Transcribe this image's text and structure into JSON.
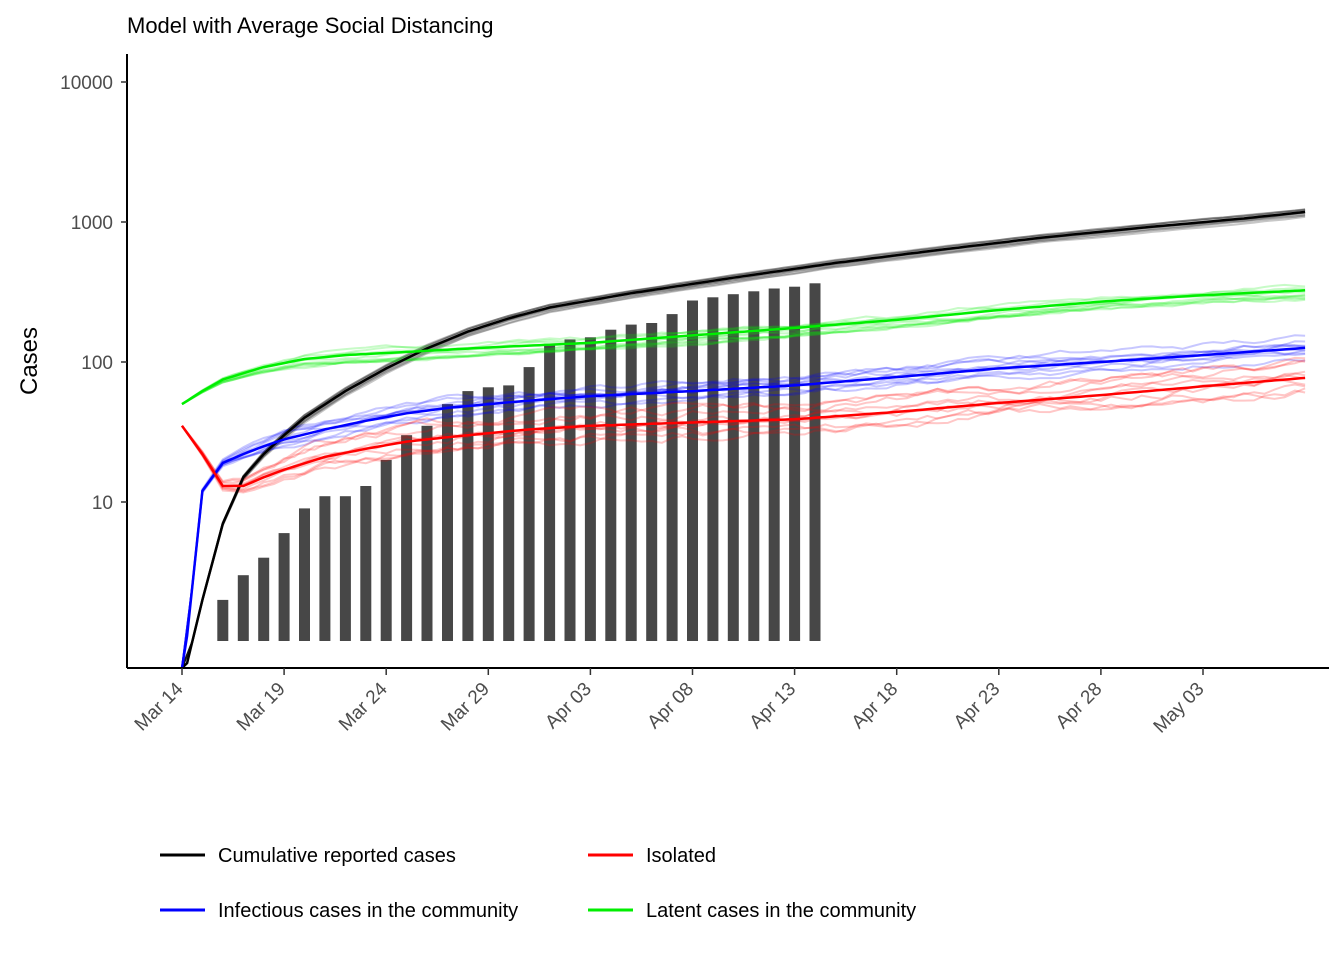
{
  "chart_data": {
    "type": "line",
    "title": "Model with Average Social Distancing",
    "xlabel": "",
    "ylabel": "Cases",
    "y_scale": "log10",
    "ylim": [
      0.6,
      16000
    ],
    "x_start": "2020-03-14",
    "x_end": "2020-05-08",
    "x_ticks": [
      "Mar 14",
      "Mar 19",
      "Mar 24",
      "Mar 29",
      "Apr 03",
      "Apr 08",
      "Apr 13",
      "Apr 18",
      "Apr 23",
      "Apr 28",
      "May 03"
    ],
    "x_tick_dates": [
      "2020-03-14",
      "2020-03-19",
      "2020-03-24",
      "2020-03-29",
      "2020-04-03",
      "2020-04-08",
      "2020-04-13",
      "2020-04-18",
      "2020-04-23",
      "2020-04-28",
      "2020-05-03"
    ],
    "y_ticks": [
      10,
      100,
      1000,
      10000
    ],
    "y_tick_labels": [
      "10",
      "100",
      "1000",
      "10000"
    ],
    "grid": false,
    "legend_position": "bottom",
    "bars": {
      "name": "Reported cases",
      "color": "#474747",
      "dates": [
        "2020-03-16",
        "2020-03-17",
        "2020-03-18",
        "2020-03-19",
        "2020-03-20",
        "2020-03-21",
        "2020-03-22",
        "2020-03-23",
        "2020-03-24",
        "2020-03-25",
        "2020-03-26",
        "2020-03-27",
        "2020-03-28",
        "2020-03-29",
        "2020-03-30",
        "2020-03-31",
        "2020-04-01",
        "2020-04-02",
        "2020-04-03",
        "2020-04-04",
        "2020-04-05",
        "2020-04-06",
        "2020-04-07",
        "2020-04-08",
        "2020-04-09",
        "2020-04-10",
        "2020-04-11",
        "2020-04-12",
        "2020-04-13",
        "2020-04-14"
      ],
      "values": [
        2,
        3,
        4,
        6,
        9,
        11,
        11,
        13,
        20,
        30,
        35,
        50,
        62,
        66,
        68,
        92,
        135,
        145,
        150,
        170,
        185,
        190,
        220,
        275,
        290,
        305,
        320,
        335,
        345,
        365
      ]
    },
    "series": [
      {
        "name": "Cumulative reported cases",
        "color": "#000000",
        "dates": [
          "2020-03-14",
          "2020-03-15",
          "2020-03-16",
          "2020-03-17",
          "2020-03-18",
          "2020-03-19",
          "2020-03-20",
          "2020-03-22",
          "2020-03-24",
          "2020-03-26",
          "2020-03-28",
          "2020-03-30",
          "2020-04-01",
          "2020-04-05",
          "2020-04-10",
          "2020-04-15",
          "2020-04-20",
          "2020-04-25",
          "2020-04-30",
          "2020-05-05",
          "2020-05-08"
        ],
        "values": [
          0.5,
          2,
          7,
          15,
          22,
          30,
          40,
          62,
          90,
          125,
          165,
          205,
          245,
          310,
          400,
          510,
          630,
          770,
          910,
          1060,
          1180
        ]
      },
      {
        "name": "Infectious cases in the community",
        "color": "#0000ff",
        "dates": [
          "2020-03-14",
          "2020-03-15",
          "2020-03-16",
          "2020-03-17",
          "2020-03-18",
          "2020-03-19",
          "2020-03-21",
          "2020-03-23",
          "2020-03-25",
          "2020-03-27",
          "2020-03-29",
          "2020-03-31",
          "2020-04-03",
          "2020-04-08",
          "2020-04-13",
          "2020-04-18",
          "2020-04-23",
          "2020-04-28",
          "2020-05-03",
          "2020-05-08"
        ],
        "values": [
          0.5,
          12,
          19,
          22,
          25,
          28,
          33,
          38,
          43,
          47,
          50,
          53,
          57,
          62,
          68,
          78,
          90,
          100,
          112,
          126
        ]
      },
      {
        "name": "Isolated",
        "color": "#ff0000",
        "dates": [
          "2020-03-14",
          "2020-03-15",
          "2020-03-16",
          "2020-03-17",
          "2020-03-18",
          "2020-03-19",
          "2020-03-21",
          "2020-03-23",
          "2020-03-25",
          "2020-03-27",
          "2020-03-29",
          "2020-03-31",
          "2020-04-03",
          "2020-04-08",
          "2020-04-13",
          "2020-04-18",
          "2020-04-23",
          "2020-04-28",
          "2020-05-03",
          "2020-05-08"
        ],
        "values": [
          35,
          22,
          13,
          13,
          15,
          17,
          21,
          24,
          27,
          29,
          31,
          33,
          35,
          37,
          39,
          44,
          51,
          58,
          67,
          77
        ]
      },
      {
        "name": "Latent cases in the community",
        "color": "#00ee00",
        "dates": [
          "2020-03-14",
          "2020-03-15",
          "2020-03-16",
          "2020-03-18",
          "2020-03-20",
          "2020-03-22",
          "2020-03-25",
          "2020-03-29",
          "2020-04-03",
          "2020-04-08",
          "2020-04-13",
          "2020-04-18",
          "2020-04-23",
          "2020-04-28",
          "2020-05-03",
          "2020-05-08"
        ],
        "values": [
          50,
          62,
          75,
          92,
          105,
          112,
          118,
          127,
          137,
          155,
          175,
          200,
          235,
          270,
          300,
          325
        ]
      }
    ]
  },
  "legend": [
    {
      "label": "Cumulative reported cases",
      "color": "#000000"
    },
    {
      "label": "Isolated",
      "color": "#ff0000"
    },
    {
      "label": "Infectious cases in the community",
      "color": "#0000ff"
    },
    {
      "label": "Latent cases in the community",
      "color": "#00ee00"
    }
  ]
}
